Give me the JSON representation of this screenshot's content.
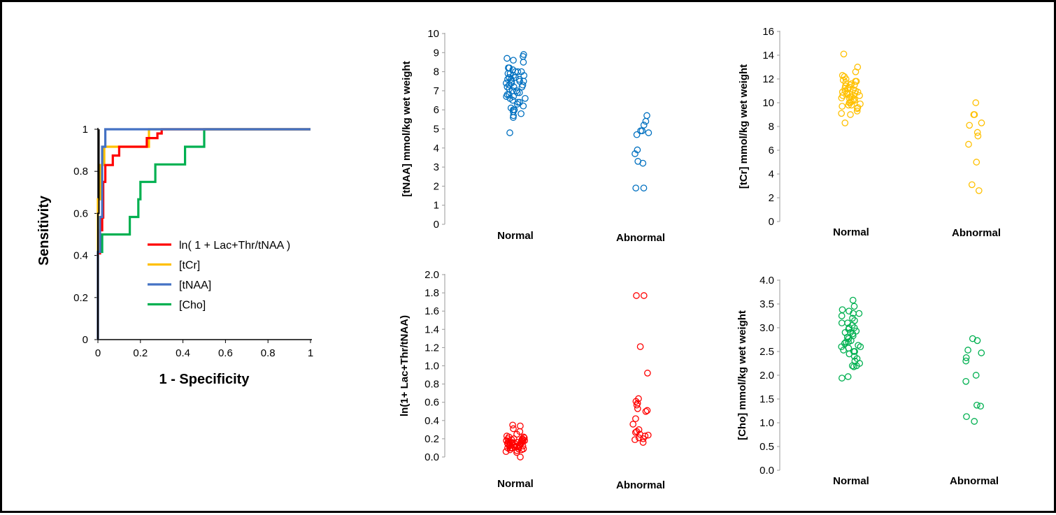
{
  "chart_data": [
    {
      "id": "roc",
      "type": "line",
      "xlabel": "1 - Specificity",
      "ylabel": "Sensitivity",
      "xlim": [
        0,
        1
      ],
      "ylim": [
        0,
        1
      ],
      "xticks": [
        "0",
        "0.2",
        "0.4",
        "0.6",
        "0.8",
        "1"
      ],
      "yticks": [
        "0",
        "0.2",
        "0.4",
        "0.6",
        "0.8",
        "1"
      ],
      "legend_position": "center-right",
      "series": [
        {
          "name": "ln( 1 + Lac+Thr/tNAA )",
          "color": "#ff0000",
          "points": [
            [
              0,
              0
            ],
            [
              0,
              0.41
            ],
            [
              0.01,
              0.41
            ],
            [
              0.01,
              0.52
            ],
            [
              0.02,
              0.52
            ],
            [
              0.02,
              0.58
            ],
            [
              0.025,
              0.58
            ],
            [
              0.025,
              0.75
            ],
            [
              0.035,
              0.75
            ],
            [
              0.035,
              0.83
            ],
            [
              0.07,
              0.83
            ],
            [
              0.07,
              0.875
            ],
            [
              0.1,
              0.875
            ],
            [
              0.1,
              0.917
            ],
            [
              0.23,
              0.917
            ],
            [
              0.23,
              0.958
            ],
            [
              0.28,
              0.958
            ],
            [
              0.28,
              0.98
            ],
            [
              0.3,
              0.98
            ],
            [
              0.3,
              1
            ],
            [
              1,
              1
            ]
          ]
        },
        {
          "name": "[tCr]",
          "color": "#ffc000",
          "points": [
            [
              0,
              0
            ],
            [
              0,
              0.667
            ],
            [
              0.01,
              0.667
            ],
            [
              0.01,
              0.83
            ],
            [
              0.03,
              0.83
            ],
            [
              0.03,
              0.917
            ],
            [
              0.24,
              0.917
            ],
            [
              0.24,
              1
            ],
            [
              1,
              1
            ]
          ]
        },
        {
          "name": "[tNAA]",
          "color": "#4472c4",
          "points": [
            [
              0,
              0
            ],
            [
              0,
              0.417
            ],
            [
              0.01,
              0.417
            ],
            [
              0.01,
              0.583
            ],
            [
              0.02,
              0.583
            ],
            [
              0.02,
              0.917
            ],
            [
              0.035,
              0.917
            ],
            [
              0.035,
              1
            ],
            [
              1,
              1
            ]
          ]
        },
        {
          "name": "[Cho]",
          "color": "#00b050",
          "points": [
            [
              0,
              0
            ],
            [
              0,
              0.417
            ],
            [
              0.02,
              0.417
            ],
            [
              0.02,
              0.5
            ],
            [
              0.15,
              0.5
            ],
            [
              0.15,
              0.583
            ],
            [
              0.19,
              0.583
            ],
            [
              0.19,
              0.667
            ],
            [
              0.2,
              0.667
            ],
            [
              0.2,
              0.75
            ],
            [
              0.27,
              0.75
            ],
            [
              0.27,
              0.833
            ],
            [
              0.41,
              0.833
            ],
            [
              0.41,
              0.917
            ],
            [
              0.5,
              0.917
            ],
            [
              0.5,
              1
            ],
            [
              1,
              1
            ]
          ]
        }
      ],
      "extra_line": {
        "color": "#000000",
        "points": [
          [
            0,
            0
          ],
          [
            0,
            0.6
          ],
          [
            0.005,
            0.6
          ],
          [
            0.005,
            1
          ]
        ]
      }
    },
    {
      "id": "tnaa",
      "type": "scatter",
      "ylabel": "[tNAA] mmol/kg  wet weight",
      "color": "#0070c0",
      "ylim": [
        0,
        10
      ],
      "yticks": [
        "0",
        "1",
        "2",
        "3",
        "4",
        "5",
        "6",
        "7",
        "8",
        "9",
        "10"
      ],
      "categories": [
        "Normal",
        "Abnormal"
      ],
      "groups": [
        [
          8.8,
          8.9,
          8.7,
          8.6,
          8.5,
          8.2,
          8.1,
          8.0,
          8.0,
          7.9,
          7.9,
          7.8,
          7.8,
          7.7,
          7.7,
          7.6,
          7.6,
          7.5,
          7.5,
          7.4,
          7.4,
          7.3,
          7.3,
          7.2,
          7.2,
          7.1,
          7.0,
          7.0,
          6.9,
          6.9,
          6.8,
          6.8,
          6.7,
          6.7,
          6.6,
          6.5,
          6.4,
          6.3,
          6.2,
          6.1,
          6.0,
          6.0,
          5.9,
          5.8,
          5.7,
          5.6,
          4.8,
          8.2,
          7.6,
          7.2,
          6.6,
          6.4,
          8.0,
          7.5
        ],
        [
          5.7,
          5.4,
          5.2,
          4.9,
          4.9,
          4.8,
          4.7,
          3.9,
          3.7,
          3.3,
          3.2,
          1.9,
          1.9
        ]
      ]
    },
    {
      "id": "tcr",
      "type": "scatter",
      "ylabel": "[tCr] mmol/kg  wet weight",
      "color": "#ffc000",
      "ylim": [
        0,
        16
      ],
      "yticks": [
        "0",
        "2",
        "4",
        "6",
        "8",
        "10",
        "12",
        "14",
        "16"
      ],
      "categories": [
        "Normal",
        "Abnormal"
      ],
      "groups": [
        [
          14.1,
          13.0,
          12.6,
          12.3,
          12.0,
          11.9,
          11.8,
          11.7,
          11.6,
          11.5,
          11.4,
          11.3,
          11.2,
          11.1,
          11.0,
          11.0,
          10.9,
          10.8,
          10.8,
          10.7,
          10.6,
          10.5,
          10.5,
          10.4,
          10.3,
          10.2,
          10.1,
          10.0,
          10.0,
          9.9,
          9.8,
          9.7,
          9.5,
          9.3,
          9.1,
          9.0,
          8.3,
          11.8,
          11.2,
          10.6,
          10.2,
          9.6,
          11.5,
          10.9,
          10.4,
          12.2,
          9.8,
          10.7
        ],
        [
          10.0,
          9.0,
          9.0,
          8.3,
          8.1,
          7.5,
          7.2,
          6.5,
          5.0,
          3.1,
          2.6
        ]
      ]
    },
    {
      "id": "ratio",
      "type": "scatter",
      "ylabel": "ln(1+ Lac+Thr/tNAA)",
      "color": "#ff0000",
      "ylim": [
        0,
        2
      ],
      "yticks": [
        "0.0",
        "0.2",
        "0.4",
        "0.6",
        "0.8",
        "1.0",
        "1.2",
        "1.4",
        "1.6",
        "1.8",
        "2.0"
      ],
      "categories": [
        "Normal",
        "Abnormal"
      ],
      "groups": [
        [
          0.35,
          0.34,
          0.31,
          0.28,
          0.25,
          0.23,
          0.22,
          0.21,
          0.2,
          0.2,
          0.19,
          0.19,
          0.18,
          0.18,
          0.17,
          0.17,
          0.16,
          0.16,
          0.15,
          0.15,
          0.14,
          0.14,
          0.13,
          0.13,
          0.12,
          0.12,
          0.11,
          0.11,
          0.1,
          0.1,
          0.09,
          0.09,
          0.08,
          0.07,
          0.06,
          0.05,
          0.0,
          0.2,
          0.15,
          0.12,
          0.18,
          0.1,
          0.14,
          0.16,
          0.13,
          0.22,
          0.08,
          0.11
        ],
        [
          1.77,
          1.77,
          1.21,
          0.92,
          0.64,
          0.61,
          0.59,
          0.57,
          0.53,
          0.51,
          0.5,
          0.42,
          0.36,
          0.3,
          0.28,
          0.27,
          0.25,
          0.24,
          0.23,
          0.21,
          0.2,
          0.19,
          0.16
        ]
      ]
    },
    {
      "id": "cho",
      "type": "scatter",
      "ylabel": "[Cho] mmol/kg  wet weight",
      "color": "#00b050",
      "ylim": [
        0,
        4
      ],
      "yticks": [
        "0.0",
        "0.5",
        "1.0",
        "1.5",
        "2.0",
        "2.5",
        "3.0",
        "3.5",
        "4.0"
      ],
      "categories": [
        "Normal",
        "Abnormal"
      ],
      "groups": [
        [
          3.58,
          3.45,
          3.38,
          3.35,
          3.3,
          3.25,
          3.2,
          3.15,
          3.1,
          3.05,
          3.0,
          2.97,
          2.93,
          2.9,
          2.87,
          2.83,
          2.8,
          2.77,
          2.73,
          2.7,
          2.67,
          2.63,
          2.6,
          2.57,
          2.53,
          2.5,
          2.45,
          2.4,
          2.35,
          2.3,
          2.25,
          2.2,
          2.18,
          1.97,
          1.94,
          3.0,
          2.8,
          2.6,
          2.9,
          2.7,
          3.1,
          2.5,
          2.2,
          3.3
        ],
        [
          2.77,
          2.73,
          2.53,
          2.47,
          2.37,
          2.3,
          2.0,
          1.87,
          1.37,
          1.35,
          1.13,
          1.03
        ]
      ]
    }
  ]
}
